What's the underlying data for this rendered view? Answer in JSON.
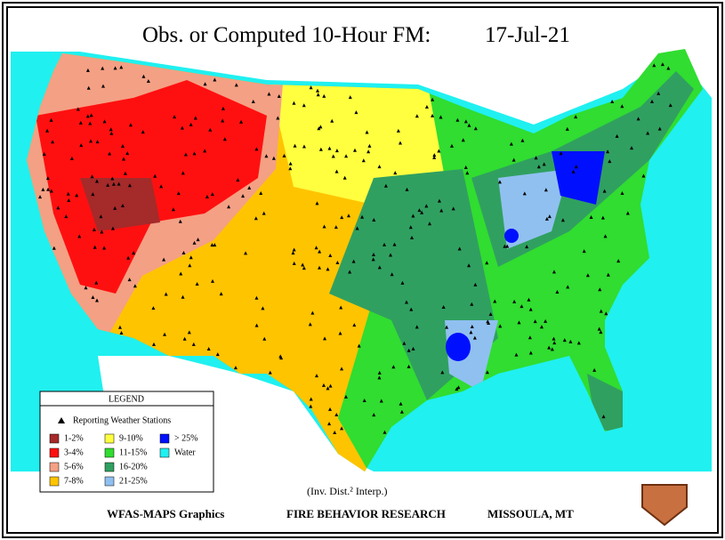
{
  "header": {
    "title": "Obs. or Computed 10-Hour FM:",
    "date": "17-Jul-21"
  },
  "legend": {
    "title": "LEGEND",
    "stations": "Reporting Weather Stations",
    "items": [
      {
        "label": "1-2%",
        "color": "#a52a2a"
      },
      {
        "label": "3-4%",
        "color": "#ff1010"
      },
      {
        "label": "5-6%",
        "color": "#f4a084"
      },
      {
        "label": "7-8%",
        "color": "#ffc400"
      },
      {
        "label": "9-10%",
        "color": "#ffff40"
      },
      {
        "label": "11-15%",
        "color": "#30dd30"
      },
      {
        "label": "16-20%",
        "color": "#30a060"
      },
      {
        "label": "21-25%",
        "color": "#90c0f0"
      },
      {
        "label": "> 25%",
        "color": "#0010ff"
      },
      {
        "label": "Water",
        "color": "#20f0f0"
      }
    ]
  },
  "note": "(Inv. Dist.² Interp.)",
  "footer": [
    "WFAS-MAPS Graphics",
    "FIRE BEHAVIOR RESEARCH",
    "MISSOULA, MT"
  ]
}
